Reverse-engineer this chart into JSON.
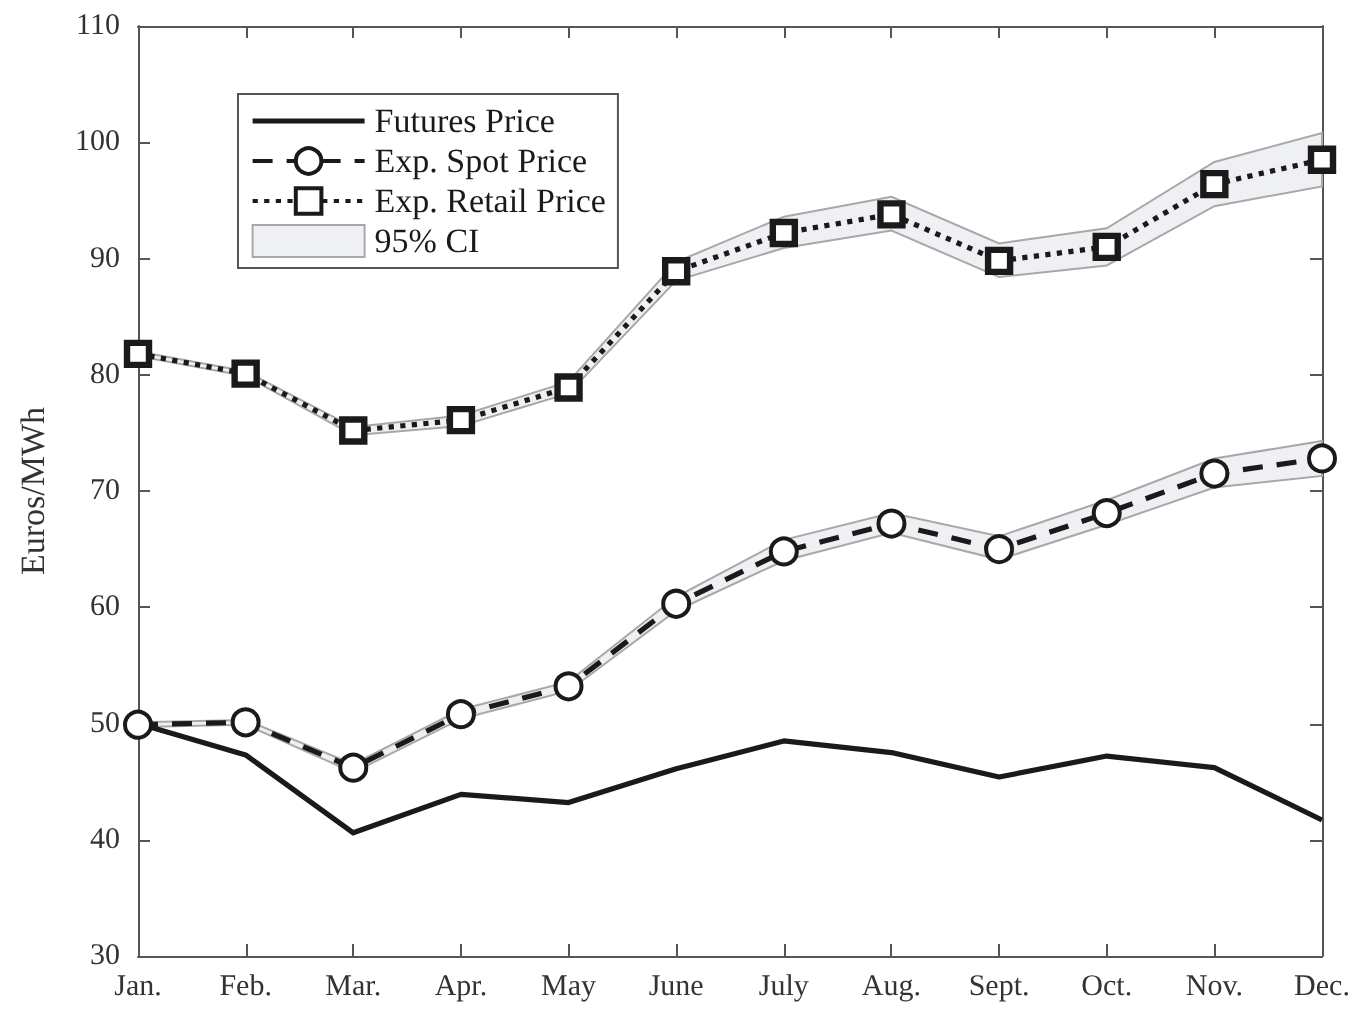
{
  "chart_data": {
    "type": "line",
    "categories": [
      "Jan.",
      "Feb.",
      "Mar.",
      "Apr.",
      "May",
      "June",
      "July",
      "Aug.",
      "Sept.",
      "Oct.",
      "Nov.",
      "Dec."
    ],
    "ylabel": "Euros/MWh",
    "ylim": [
      30,
      110
    ],
    "yticks": [
      30,
      40,
      50,
      60,
      70,
      80,
      90,
      100,
      110
    ],
    "grid": false,
    "legend": "top left",
    "series": [
      {
        "name": "Futures Price",
        "type": "line",
        "color": "#1a1a1a",
        "line_style": "solid",
        "marker": "none",
        "values": [
          50.0,
          47.3,
          40.6,
          43.9,
          43.2,
          46.1,
          48.5,
          47.5,
          45.4,
          47.2,
          46.2,
          41.7
        ]
      },
      {
        "name": "Exp. Spot Price",
        "type": "line",
        "color": "#1a1a1a",
        "line_style": "dashed",
        "marker": "circle",
        "values": [
          49.9,
          50.1,
          46.2,
          50.8,
          53.2,
          60.3,
          64.8,
          67.2,
          65.0,
          68.1,
          71.5,
          72.8
        ],
        "lower": [
          49.7,
          49.9,
          45.8,
          50.4,
          52.8,
          59.7,
          64.0,
          66.4,
          64.1,
          67.1,
          70.3,
          71.3
        ],
        "upper": [
          50.1,
          50.3,
          46.5,
          51.2,
          53.6,
          60.9,
          65.8,
          68.1,
          66.1,
          69.2,
          72.8,
          74.3
        ]
      },
      {
        "name": "Exp. Retail Price",
        "type": "line",
        "color": "#1a1a1a",
        "line_style": "dotted",
        "marker": "square",
        "values": [
          81.8,
          80.1,
          75.2,
          76.1,
          78.9,
          88.9,
          92.2,
          93.8,
          89.8,
          91.0,
          96.4,
          98.5
        ],
        "lower": [
          81.6,
          79.9,
          74.8,
          75.6,
          78.4,
          88.1,
          90.9,
          92.4,
          88.4,
          89.4,
          94.5,
          96.2
        ],
        "upper": [
          82.0,
          80.3,
          75.5,
          76.5,
          79.4,
          89.7,
          93.6,
          95.3,
          91.3,
          92.6,
          98.3,
          100.8
        ]
      },
      {
        "name": "95% CI",
        "type": "area",
        "color": "#eef0f3",
        "values": [
          null,
          null,
          null,
          null,
          null,
          null,
          null,
          null,
          null,
          null,
          null,
          null
        ]
      }
    ]
  }
}
